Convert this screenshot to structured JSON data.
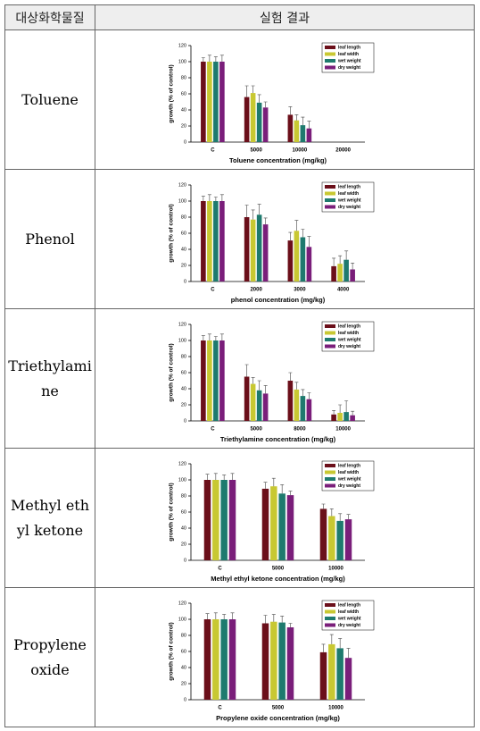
{
  "table": {
    "header": [
      "대상화학물질",
      "실험 결과"
    ],
    "rows": [
      {
        "label": "Toluene",
        "chart": {
          "type": "bar",
          "xlabel": "Toluene concentration (mg/kg)",
          "ylabel": "growth (% of control)",
          "categories": [
            "C",
            "5000",
            "10000",
            "20000"
          ],
          "ylim": [
            0,
            120
          ],
          "yticks": [
            0,
            20,
            40,
            60,
            80,
            100,
            120
          ],
          "series": [
            {
              "name": "leaf length",
              "color": "#6b0f1a",
              "values": [
                100,
                56,
                34,
                0
              ],
              "errors": [
                5,
                14,
                10,
                0
              ]
            },
            {
              "name": "leaf width",
              "color": "#c8c832",
              "values": [
                100,
                61,
                27,
                0
              ],
              "errors": [
                8,
                9,
                7,
                0
              ]
            },
            {
              "name": "wet weight",
              "color": "#1e7a6e",
              "values": [
                100,
                49,
                21,
                0
              ],
              "errors": [
                6,
                10,
                10,
                0
              ]
            },
            {
              "name": "dry weight",
              "color": "#7a1e7a",
              "values": [
                100,
                43,
                17,
                0
              ],
              "errors": [
                8,
                7,
                9,
                0
              ]
            }
          ]
        }
      },
      {
        "label": "Phenol",
        "chart": {
          "type": "bar",
          "xlabel": "phenol concentration (mg/kg)",
          "ylabel": "growth (% of control)",
          "categories": [
            "C",
            "2000",
            "3000",
            "4000"
          ],
          "ylim": [
            0,
            120
          ],
          "yticks": [
            0,
            20,
            40,
            60,
            80,
            100,
            120
          ],
          "series": [
            {
              "name": "leaf length",
              "color": "#6b0f1a",
              "values": [
                100,
                80,
                51,
                19
              ],
              "errors": [
                6,
                15,
                10,
                10
              ]
            },
            {
              "name": "leaf width",
              "color": "#c8c832",
              "values": [
                100,
                77,
                63,
                22
              ],
              "errors": [
                8,
                12,
                13,
                10
              ]
            },
            {
              "name": "wet weight",
              "color": "#1e7a6e",
              "values": [
                100,
                83,
                55,
                27
              ],
              "errors": [
                5,
                13,
                10,
                11
              ]
            },
            {
              "name": "dry weight",
              "color": "#7a1e7a",
              "values": [
                100,
                71,
                43,
                15
              ],
              "errors": [
                8,
                8,
                13,
                8
              ]
            }
          ]
        }
      },
      {
        "label": "Triethylamine",
        "chart": {
          "type": "bar",
          "xlabel": "Triethylamine concentration (mg/kg)",
          "ylabel": "growth (% of control)",
          "categories": [
            "C",
            "5000",
            "8000",
            "10000"
          ],
          "ylim": [
            0,
            120
          ],
          "yticks": [
            0,
            20,
            40,
            60,
            80,
            100,
            120
          ],
          "series": [
            {
              "name": "leaf length",
              "color": "#6b0f1a",
              "values": [
                100,
                55,
                50,
                8
              ],
              "errors": [
                6,
                15,
                10,
                5
              ]
            },
            {
              "name": "leaf width",
              "color": "#c8c832",
              "values": [
                100,
                46,
                39,
                10
              ],
              "errors": [
                8,
                8,
                9,
                10
              ]
            },
            {
              "name": "wet weight",
              "color": "#1e7a6e",
              "values": [
                100,
                38,
                31,
                11
              ],
              "errors": [
                5,
                12,
                8,
                14
              ]
            },
            {
              "name": "dry weight",
              "color": "#7a1e7a",
              "values": [
                100,
                34,
                27,
                7
              ],
              "errors": [
                8,
                10,
                8,
                5
              ]
            }
          ]
        }
      },
      {
        "label": "Methyl ethyl ketone",
        "chart": {
          "type": "bar",
          "xlabel": "Methyl ethyl ketone concentration (mg/kg)",
          "ylabel": "growth (% of control)",
          "categories": [
            "C",
            "5000",
            "10000"
          ],
          "ylim": [
            0,
            120
          ],
          "yticks": [
            0,
            20,
            40,
            60,
            80,
            100,
            120
          ],
          "series": [
            {
              "name": "leaf length",
              "color": "#6b0f1a",
              "values": [
                100,
                89,
                64
              ],
              "errors": [
                7,
                8,
                6
              ]
            },
            {
              "name": "leaf width",
              "color": "#c8c832",
              "values": [
                100,
                92,
                55
              ],
              "errors": [
                8,
                10,
                9
              ]
            },
            {
              "name": "wet weight",
              "color": "#1e7a6e",
              "values": [
                100,
                83,
                49
              ],
              "errors": [
                6,
                11,
                9
              ]
            },
            {
              "name": "dry weight",
              "color": "#7a1e7a",
              "values": [
                100,
                81,
                51
              ],
              "errors": [
                8,
                5,
                6
              ]
            }
          ]
        }
      },
      {
        "label": "Propylene oxide",
        "chart": {
          "type": "bar",
          "xlabel": "Propylene oxide concentration (mg/kg)",
          "ylabel": "growth (% of control)",
          "categories": [
            "C",
            "5000",
            "10000"
          ],
          "ylim": [
            0,
            120
          ],
          "yticks": [
            0,
            20,
            40,
            60,
            80,
            100,
            120
          ],
          "series": [
            {
              "name": "leaf length",
              "color": "#6b0f1a",
              "values": [
                100,
                95,
                59
              ],
              "errors": [
                7,
                10,
                10
              ]
            },
            {
              "name": "leaf width",
              "color": "#c8c832",
              "values": [
                100,
                97,
                69
              ],
              "errors": [
                8,
                9,
                12
              ]
            },
            {
              "name": "wet weight",
              "color": "#1e7a6e",
              "values": [
                100,
                96,
                64
              ],
              "errors": [
                6,
                8,
                12
              ]
            },
            {
              "name": "dry weight",
              "color": "#7a1e7a",
              "values": [
                100,
                90,
                52
              ],
              "errors": [
                8,
                5,
                12
              ]
            }
          ]
        }
      }
    ]
  }
}
